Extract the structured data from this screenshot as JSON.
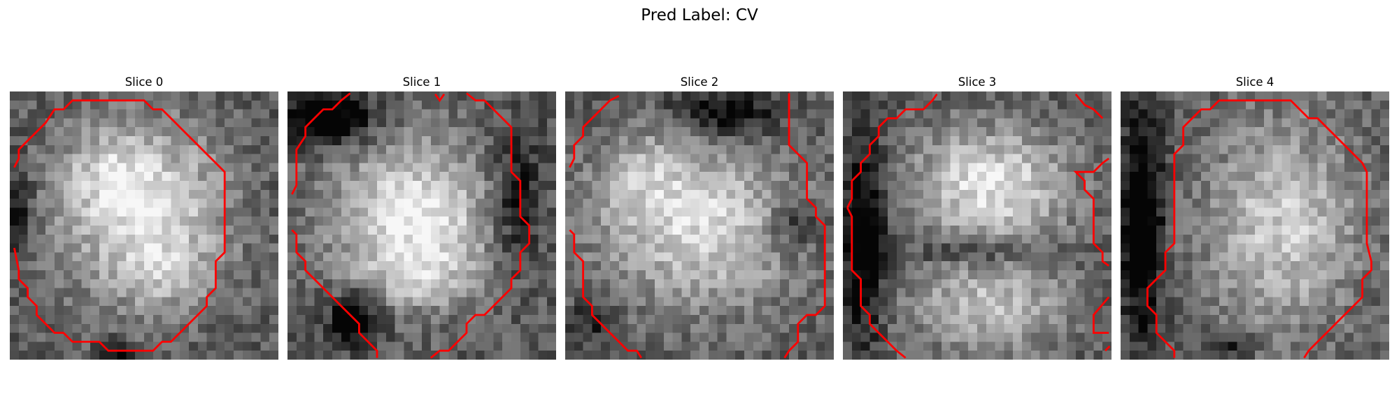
{
  "figure": {
    "suptitle": "Pred Label: CV",
    "panels": [
      {
        "title": "Slice 0",
        "seed": 11,
        "blobs": [
          [
            0.5,
            0.45,
            0.36,
            0.38,
            0.55
          ],
          [
            0.35,
            0.3,
            0.2,
            0.18,
            0.2
          ],
          [
            0.6,
            0.7,
            0.2,
            0.15,
            0.15
          ]
        ],
        "dark_regions": [
          [
            0.0,
            0.45,
            0.1,
            0.2,
            0.35
          ],
          [
            0.4,
            0.98,
            0.08,
            0.06,
            0.4
          ]
        ],
        "contour_color": "#ff0000"
      },
      {
        "title": "Slice 1",
        "seed": 23,
        "blobs": [
          [
            0.47,
            0.47,
            0.36,
            0.33,
            0.6
          ],
          [
            0.5,
            0.7,
            0.25,
            0.12,
            0.2
          ]
        ],
        "dark_regions": [
          [
            0.15,
            0.1,
            0.2,
            0.12,
            0.6
          ],
          [
            0.25,
            0.85,
            0.12,
            0.12,
            0.55
          ],
          [
            0.85,
            0.4,
            0.12,
            0.3,
            0.35
          ]
        ],
        "contour_color": "#ff0000"
      },
      {
        "title": "Slice 2",
        "seed": 37,
        "blobs": [
          [
            0.5,
            0.5,
            0.45,
            0.35,
            0.5
          ],
          [
            0.3,
            0.3,
            0.2,
            0.2,
            0.2
          ]
        ],
        "dark_regions": [
          [
            0.6,
            0.08,
            0.25,
            0.1,
            0.4
          ],
          [
            0.85,
            0.5,
            0.12,
            0.12,
            0.3
          ],
          [
            0.1,
            0.85,
            0.1,
            0.1,
            0.25
          ]
        ],
        "contour_color": "#ff0000"
      },
      {
        "title": "Slice 3",
        "seed": 53,
        "blobs": [
          [
            0.55,
            0.35,
            0.35,
            0.25,
            0.55
          ],
          [
            0.55,
            0.8,
            0.35,
            0.2,
            0.4
          ]
        ],
        "dark_regions": [
          [
            0.08,
            0.55,
            0.1,
            0.45,
            0.5
          ],
          [
            0.5,
            0.6,
            0.3,
            0.06,
            0.25
          ]
        ],
        "contour_color": "#ff0000"
      },
      {
        "title": "Slice 4",
        "seed": 71,
        "blobs": [
          [
            0.6,
            0.5,
            0.35,
            0.45,
            0.45
          ]
        ],
        "dark_regions": [
          [
            0.08,
            0.5,
            0.1,
            0.5,
            0.55
          ],
          [
            0.4,
            0.95,
            0.1,
            0.06,
            0.3
          ]
        ],
        "contour_color": "#ff0000"
      }
    ]
  }
}
